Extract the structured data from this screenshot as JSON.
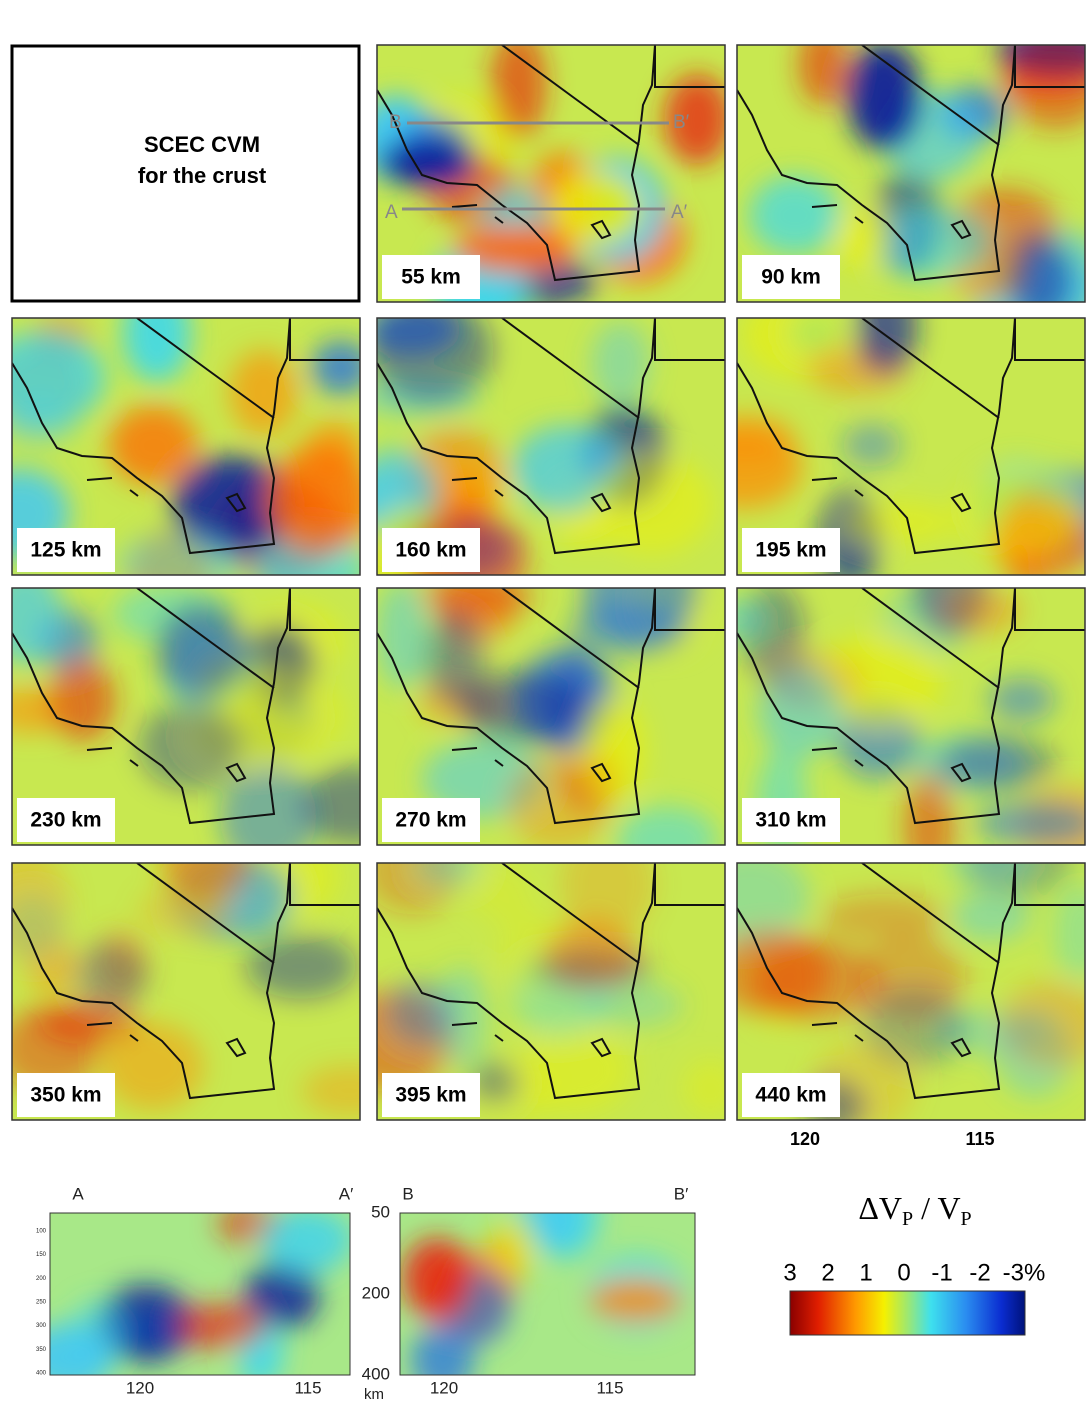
{
  "caption_box": {
    "lines": [
      "SCEC CVM",
      "for the crust"
    ]
  },
  "panels": [
    {
      "label": "55 km"
    },
    {
      "label": "90 km"
    },
    {
      "label": "125 km"
    },
    {
      "label": "160 km"
    },
    {
      "label": "195 km"
    },
    {
      "label": "230 km"
    },
    {
      "label": "270 km"
    },
    {
      "label": "310 km"
    },
    {
      "label": "350 km"
    },
    {
      "label": "395 km"
    },
    {
      "label": "440 km"
    }
  ],
  "profile_labels": {
    "a": "A",
    "a_prime": "A′",
    "b": "B",
    "b_prime": "B′"
  },
  "map_axis": {
    "labels": [
      "120",
      "115"
    ]
  },
  "cross_sections": [
    {
      "start": "A",
      "end": "A′",
      "x_labels": [
        "120",
        "115"
      ],
      "depth_labels": [
        "100",
        "150",
        "200",
        "250",
        "300",
        "350",
        "400"
      ]
    },
    {
      "start": "B",
      "end": "B′",
      "x_labels": [
        "120",
        "115"
      ],
      "depth_labels": [
        "50",
        "200",
        "400"
      ],
      "depth_unit": "km"
    }
  ],
  "colorbar": {
    "title": [
      "ΔV",
      "P",
      " / V",
      "P"
    ],
    "ticks": [
      "3",
      "2",
      "1",
      "0",
      "-1",
      "-2",
      "-3%"
    ]
  }
}
